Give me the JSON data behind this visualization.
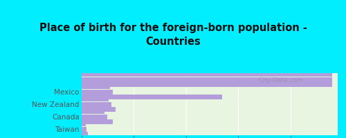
{
  "title": "Place of birth for the foreign-born population -\nCountries",
  "categories": [
    "",
    "Mexico",
    "New Zealand",
    "Canada",
    "Taiwan"
  ],
  "bar_data": [
    [
      480,
      480,
      480
    ],
    [
      270,
      60,
      55
    ],
    [
      65,
      58,
      52
    ],
    [
      60,
      50,
      45
    ],
    [
      12,
      10,
      8
    ]
  ],
  "bar_color": "#b39ddb",
  "bar_height": 0.07,
  "xlim": [
    0,
    490
  ],
  "xticks": [
    0,
    100,
    200,
    300,
    400
  ],
  "bg_color": "#00eeff",
  "chart_bg_top": "#e8f5e0",
  "chart_bg_bottom": "#d4edca",
  "title_color": "#111111",
  "label_color": "#555555",
  "tick_color": "#555555",
  "grid_color": "#ffffff",
  "watermark": "City-Data.com"
}
